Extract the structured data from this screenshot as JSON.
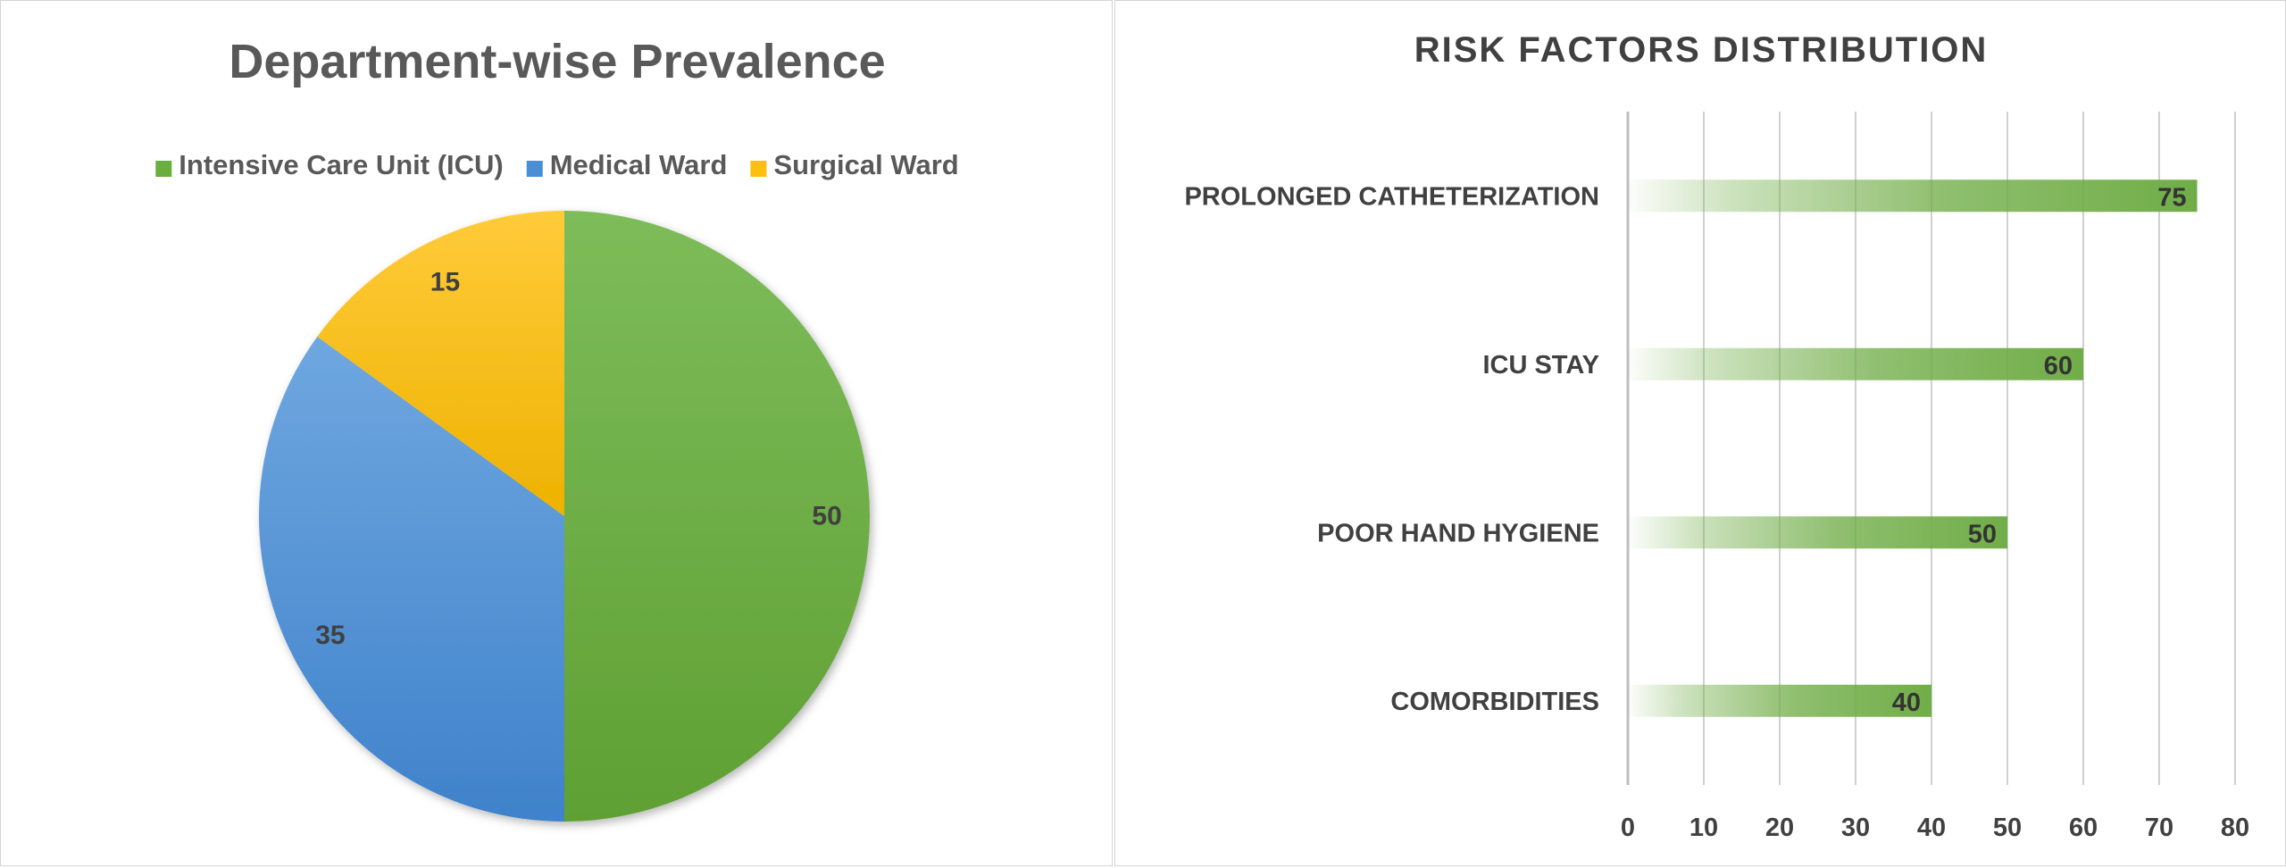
{
  "chart_data": [
    {
      "type": "pie",
      "title": "Department-wise Prevalence",
      "legend_position": "top",
      "categories": [
        "Intensive Care Unit (ICU)",
        "Medical Ward",
        "Surgical Ward"
      ],
      "values": [
        50,
        35,
        15
      ],
      "colors": [
        "#6AAE3E",
        "#4A8FD6",
        "#FDC00F"
      ],
      "data_labels": [
        "50",
        "35",
        "15"
      ]
    },
    {
      "type": "bar",
      "orientation": "horizontal",
      "title": "RISK FACTORS DISTRIBUTION",
      "categories": [
        "COMORBIDITIES",
        "POOR HAND HYGIENE",
        "ICU STAY",
        "PROLONGED CATHETERIZATION"
      ],
      "values": [
        40,
        50,
        60,
        75
      ],
      "data_labels": [
        "40",
        "50",
        "60",
        "75"
      ],
      "xlim": [
        0,
        80
      ],
      "xticks": [
        "0",
        "10",
        "20",
        "30",
        "40",
        "50",
        "60",
        "70",
        "80"
      ],
      "grid": "vertical",
      "bar_color": "#70AD47"
    }
  ]
}
